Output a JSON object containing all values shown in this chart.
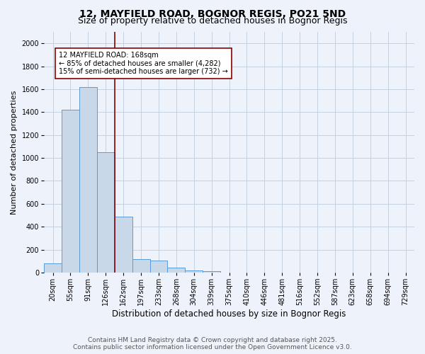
{
  "title": "12, MAYFIELD ROAD, BOGNOR REGIS, PO21 5ND",
  "subtitle": "Size of property relative to detached houses in Bognor Regis",
  "xlabel": "Distribution of detached houses by size in Bognor Regis",
  "ylabel": "Number of detached properties",
  "categories": [
    "20sqm",
    "55sqm",
    "91sqm",
    "126sqm",
    "162sqm",
    "197sqm",
    "233sqm",
    "268sqm",
    "304sqm",
    "339sqm",
    "375sqm",
    "410sqm",
    "446sqm",
    "481sqm",
    "516sqm",
    "552sqm",
    "587sqm",
    "623sqm",
    "658sqm",
    "694sqm",
    "729sqm"
  ],
  "values": [
    80,
    1420,
    1620,
    1050,
    490,
    115,
    105,
    45,
    20,
    10,
    0,
    0,
    0,
    0,
    0,
    0,
    0,
    0,
    0,
    0,
    0
  ],
  "bar_color": "#c8d8e8",
  "bar_edge_color": "#5b9bd5",
  "vline_x": 3.5,
  "vline_color": "#8b0000",
  "annotation_text": "12 MAYFIELD ROAD: 168sqm\n← 85% of detached houses are smaller (4,282)\n15% of semi-detached houses are larger (732) →",
  "annotation_box_color": "#ffffff",
  "annotation_box_edge": "#8b0000",
  "ylim": [
    0,
    2100
  ],
  "yticks": [
    0,
    200,
    400,
    600,
    800,
    1000,
    1200,
    1400,
    1600,
    1800,
    2000
  ],
  "bg_color": "#eef2fb",
  "grid_color": "#c0ccdd",
  "footer1": "Contains HM Land Registry data © Crown copyright and database right 2025.",
  "footer2": "Contains public sector information licensed under the Open Government Licence v3.0.",
  "title_fontsize": 10,
  "subtitle_fontsize": 9,
  "xlabel_fontsize": 8.5,
  "ylabel_fontsize": 8,
  "tick_fontsize": 7,
  "footer_fontsize": 6.5,
  "annot_fontsize": 7
}
